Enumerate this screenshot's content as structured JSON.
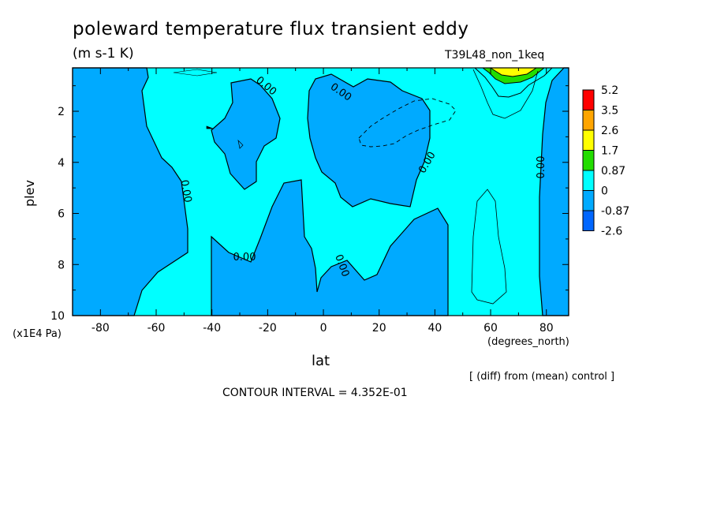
{
  "chart_data": {
    "type": "heatmap",
    "title": "poleward temperature flux transient eddy",
    "units": "(m s-1 K)",
    "run_label": "T39L48_non_1keq",
    "xlabel": "lat",
    "x_units": "(degrees_north)",
    "ylabel": "plev",
    "y_units": "(x1E4 Pa)",
    "xlim": [
      -90,
      88
    ],
    "ylim": [
      10,
      0.3
    ],
    "x_ticks": [
      -80,
      -60,
      -40,
      -20,
      0,
      20,
      40,
      60,
      80
    ],
    "y_ticks": [
      2,
      4,
      6,
      8,
      10
    ],
    "x_tick_labels": [
      "-80",
      "-60",
      "-40",
      "-20",
      "0",
      "20",
      "40",
      "60",
      "80"
    ],
    "y_tick_labels": [
      "2",
      "4",
      "6",
      "8",
      "10"
    ],
    "contour_labels": [
      "0.00",
      "0.00",
      "0.00",
      "0.00",
      "0.00",
      "0.00",
      "0.00"
    ],
    "colorbar": {
      "levels": [
        "5.2",
        "3.5",
        "2.6",
        "1.7",
        "0.87",
        "0",
        "-0.87",
        "-2.6"
      ],
      "colors": [
        "#ff0000",
        "#ffa500",
        "#ffff00",
        "#22dd00",
        "#00ffff",
        "#00aaff",
        "#0066ff"
      ]
    },
    "negative_color": "#00aaff",
    "positive_color": "#00ffff",
    "contour_interval_text": "CONTOUR INTERVAL = 4.352E-01",
    "diff_note": "[ (diff) from (mean) control ]"
  }
}
